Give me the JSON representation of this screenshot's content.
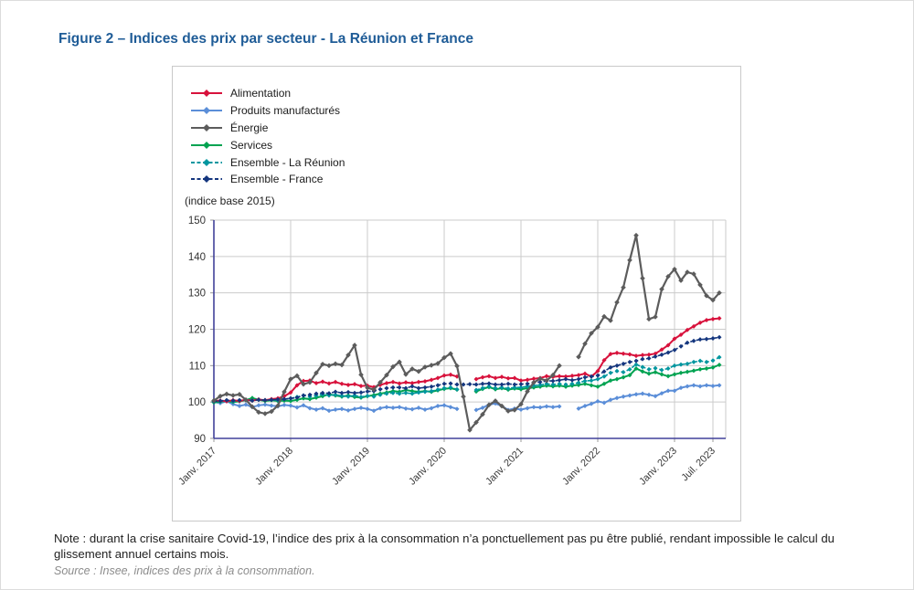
{
  "figure": {
    "title": "Figure 2 – Indices des prix par secteur - La Réunion et France",
    "title_color": "#1f5c97"
  },
  "note": {
    "text": "Note : durant la crise sanitaire Covid-19, l’indice des prix à la consommation n’a ponctuellement pas pu être publié, rendant impossible le calcul du glissement annuel certains mois.",
    "source": "Source : Insee, indices des prix à la consommation."
  },
  "chart_data": {
    "type": "line",
    "title": "Indices des prix par secteur - La Réunion et France",
    "unit_label": "(indice base 2015)",
    "ylim": [
      90,
      150
    ],
    "yticks": [
      90,
      100,
      110,
      120,
      130,
      140,
      150
    ],
    "x_tick_labels": [
      "Janv. 2017",
      "Janv. 2018",
      "Janv. 2019",
      "Janv. 2020",
      "Janv. 2021",
      "Janv. 2022",
      "Janv. 2023",
      "Juil. 2023"
    ],
    "x_tick_months": [
      0,
      12,
      24,
      36,
      48,
      60,
      72,
      78
    ],
    "months_domain": [
      0,
      80
    ],
    "grid": true,
    "legend_position": "top-left",
    "axis_color": "#41419a",
    "grid_color": "#cbcbcb",
    "tick_color": "#9a9a9a",
    "draw_order": [
      1,
      3,
      4,
      0,
      5,
      2
    ],
    "series": [
      {
        "name": "Alimentation",
        "color": "#d8123c",
        "dash": false,
        "values": [
          100.3,
          100.4,
          100.2,
          100.5,
          100.3,
          100.6,
          100.4,
          100.7,
          100.5,
          100.8,
          101.0,
          101.6,
          102.6,
          104.6,
          105.8,
          105.9,
          105.2,
          105.6,
          105.1,
          105.5,
          105.0,
          104.7,
          104.9,
          104.4,
          104.5,
          104.1,
          104.7,
          105.2,
          105.5,
          105.1,
          105.4,
          105.2,
          105.5,
          105.7,
          106.1,
          106.6,
          107.3,
          107.5,
          107.0,
          null,
          null,
          106.3,
          106.8,
          107.1,
          106.6,
          106.9,
          106.5,
          106.6,
          105.9,
          106.1,
          106.4,
          106.6,
          107.1,
          106.9,
          107.1,
          107.0,
          107.2,
          107.4,
          107.8,
          107.0,
          108.5,
          111.5,
          113.2,
          113.5,
          113.3,
          113.1,
          112.7,
          112.9,
          113.0,
          113.3,
          114.4,
          115.6,
          117.4,
          118.5,
          119.8,
          120.8,
          121.8,
          122.5,
          122.8,
          123.0
        ]
      },
      {
        "name": "Produits manufacturés",
        "color": "#5b8ed8",
        "dash": false,
        "values": [
          100.0,
          99.7,
          100.2,
          99.4,
          98.9,
          99.3,
          98.6,
          99.1,
          99.3,
          99.0,
          98.8,
          99.2,
          99.0,
          98.5,
          99.1,
          98.3,
          97.9,
          98.3,
          97.6,
          97.9,
          98.1,
          97.7,
          98.1,
          98.4,
          98.1,
          97.6,
          98.3,
          98.6,
          98.4,
          98.6,
          98.2,
          98.0,
          98.4,
          97.9,
          98.3,
          98.9,
          99.1,
          98.6,
          98.1,
          null,
          null,
          97.8,
          98.4,
          99.3,
          99.6,
          98.9,
          97.8,
          98.2,
          97.9,
          98.3,
          98.6,
          98.5,
          98.8,
          98.6,
          98.8,
          null,
          null,
          98.2,
          98.9,
          99.5,
          100.2,
          99.8,
          100.6,
          101.1,
          101.5,
          101.8,
          102.1,
          102.3,
          102.0,
          101.6,
          102.4,
          103.1,
          103.1,
          103.9,
          104.3,
          104.6,
          104.3,
          104.6,
          104.4,
          104.6
        ]
      },
      {
        "name": "Énergie",
        "color": "#5c5c5c",
        "dash": false,
        "values": [
          100.4,
          101.6,
          102.2,
          101.8,
          102.1,
          100.6,
          98.7,
          97.2,
          96.8,
          97.4,
          99.0,
          102.8,
          106.3,
          107.2,
          104.9,
          105.4,
          108.0,
          110.4,
          110.0,
          110.5,
          110.2,
          112.9,
          115.6,
          107.5,
          103.9,
          103.4,
          105.4,
          107.4,
          109.7,
          111.0,
          107.6,
          109.1,
          108.4,
          109.6,
          110.1,
          110.6,
          112.2,
          113.3,
          109.9,
          101.5,
          92.3,
          94.4,
          96.6,
          99.2,
          100.3,
          98.9,
          97.5,
          97.8,
          99.4,
          102.9,
          105.4,
          106.4,
          105.9,
          107.4,
          110.0,
          null,
          null,
          112.4,
          116.0,
          118.9,
          120.6,
          123.5,
          122.4,
          127.4,
          131.5,
          139.0,
          145.8,
          134.0,
          122.8,
          123.4,
          131.0,
          134.5,
          136.5,
          133.4,
          135.7,
          135.2,
          132.2,
          129.2,
          128.0,
          130.0
        ]
      },
      {
        "name": "Services",
        "color": "#00a351",
        "dash": false,
        "values": [
          99.9,
          100.1,
          100.3,
          100.0,
          100.2,
          100.5,
          101.1,
          100.6,
          100.3,
          100.5,
          100.3,
          100.4,
          100.3,
          100.6,
          101.0,
          100.8,
          101.2,
          101.6,
          102.1,
          101.8,
          101.5,
          101.8,
          101.4,
          101.2,
          101.6,
          101.9,
          102.3,
          102.6,
          103.0,
          102.8,
          103.3,
          103.0,
          102.8,
          103.0,
          102.8,
          103.2,
          103.6,
          103.8,
          103.4,
          null,
          null,
          102.9,
          103.6,
          104.1,
          103.5,
          103.8,
          103.4,
          103.7,
          103.5,
          103.8,
          104.0,
          104.2,
          104.5,
          104.3,
          104.5,
          104.2,
          104.5,
          104.7,
          105.0,
          104.6,
          104.2,
          105.0,
          105.9,
          106.3,
          106.8,
          107.4,
          109.2,
          108.4,
          107.8,
          108.2,
          107.6,
          107.1,
          107.6,
          108.0,
          108.3,
          108.6,
          109.0,
          109.2,
          109.5,
          110.2
        ]
      },
      {
        "name": "Ensemble - La Réunion",
        "color": "#00969f",
        "dash": true,
        "values": [
          100.1,
          100.3,
          100.4,
          100.2,
          100.4,
          100.6,
          100.4,
          100.7,
          100.5,
          100.6,
          100.5,
          100.8,
          101.0,
          101.4,
          101.8,
          101.5,
          101.8,
          102.1,
          101.8,
          102.0,
          101.7,
          101.5,
          101.8,
          101.4,
          101.7,
          101.5,
          102.0,
          102.3,
          102.5,
          102.3,
          102.5,
          102.3,
          102.6,
          102.8,
          103.0,
          103.4,
          103.8,
          104.0,
          103.5,
          null,
          null,
          103.3,
          103.8,
          104.3,
          103.8,
          104.0,
          103.7,
          104.0,
          104.0,
          104.3,
          104.5,
          104.7,
          105.0,
          104.8,
          105.0,
          104.8,
          105.0,
          105.3,
          105.8,
          105.9,
          106.3,
          107.0,
          108.0,
          108.5,
          108.2,
          109.0,
          110.3,
          109.6,
          109.0,
          109.3,
          108.8,
          109.2,
          110.0,
          110.3,
          110.5,
          111.0,
          111.3,
          111.0,
          111.4,
          112.3
        ]
      },
      {
        "name": "Ensemble - France",
        "color": "#14367e",
        "dash": true,
        "values": [
          100.2,
          100.3,
          100.5,
          100.4,
          100.5,
          100.5,
          100.4,
          100.6,
          100.5,
          100.6,
          100.7,
          100.8,
          101.0,
          101.2,
          101.8,
          102.0,
          102.3,
          102.5,
          102.4,
          102.8,
          102.5,
          102.7,
          102.5,
          102.6,
          102.9,
          103.0,
          103.5,
          103.8,
          104.0,
          104.0,
          103.8,
          104.3,
          103.8,
          104.0,
          104.2,
          104.6,
          105.0,
          105.1,
          104.8,
          104.8,
          104.9,
          104.8,
          105.0,
          105.1,
          104.8,
          104.8,
          105.0,
          104.8,
          104.9,
          105.0,
          105.3,
          105.5,
          105.8,
          105.8,
          106.0,
          106.3,
          106.0,
          106.3,
          106.8,
          107.0,
          107.3,
          108.4,
          109.5,
          110.0,
          110.5,
          111.0,
          111.3,
          111.8,
          112.0,
          112.5,
          113.0,
          113.6,
          114.3,
          115.3,
          116.3,
          116.8,
          117.2,
          117.3,
          117.5,
          117.8
        ]
      }
    ]
  }
}
